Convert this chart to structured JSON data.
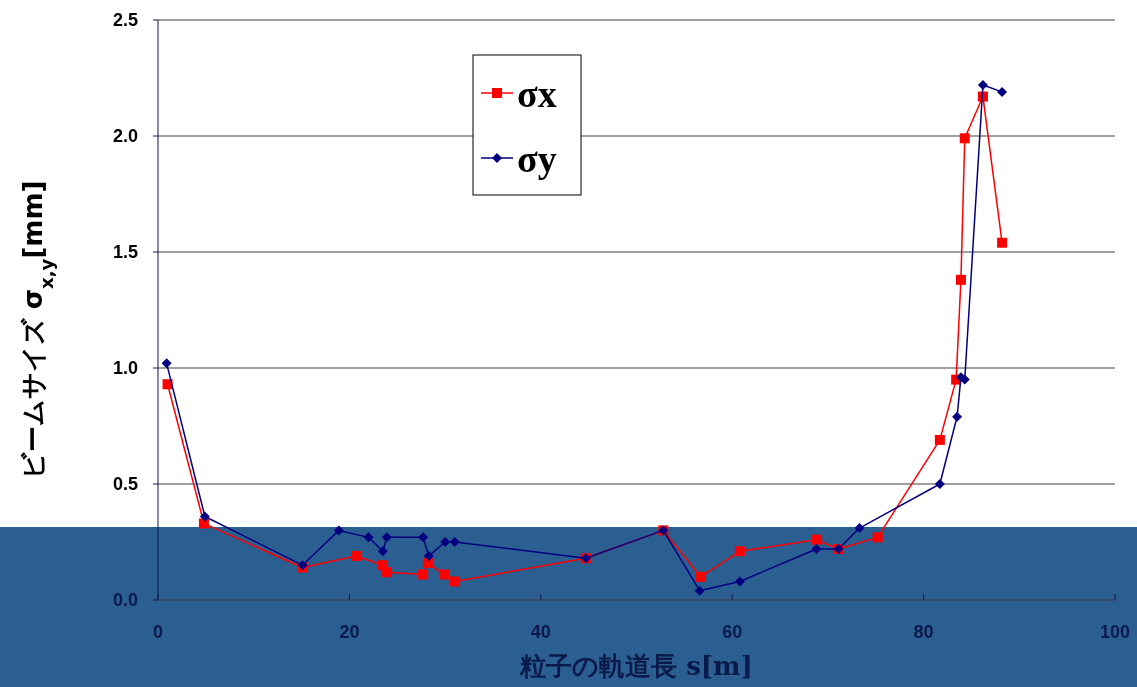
{
  "chart_data": {
    "type": "line",
    "xlabel": "粒子の軌道長 s[m]",
    "ylabel": "ビームサイズ σ$_{x,y}$[mm]",
    "xlim": [
      0,
      100
    ],
    "xticks": [
      0,
      20,
      40,
      60,
      80,
      100
    ],
    "ylim": [
      0,
      2.5
    ],
    "yticks": [
      {
        "value": 0,
        "label": "0.0"
      },
      0.5,
      {
        "value": 1,
        "label": "1.0"
      },
      1.5,
      {
        "value": 2,
        "label": "2.0"
      },
      2.5
    ],
    "grid": "y",
    "legend": "top",
    "line_style": "solid",
    "series": [
      {
        "name": "σx",
        "color": "#ff0000",
        "marker": "square",
        "x": [
          1.0,
          4.8,
          15.1,
          20.7,
          23.5,
          23.9,
          27.7,
          28.2,
          29.9,
          31.0,
          44.7,
          52.8,
          56.7,
          60.8,
          68.8,
          71.1,
          75.2,
          81.7,
          83.4,
          83.9,
          84.3,
          86.2,
          88.2
        ],
        "values": [
          0.93,
          0.33,
          0.14,
          0.19,
          0.15,
          0.12,
          0.11,
          0.16,
          0.11,
          0.08,
          0.18,
          0.3,
          0.1,
          0.21,
          0.26,
          0.22,
          0.27,
          0.69,
          0.95,
          1.38,
          1.99,
          2.17,
          1.54
        ]
      },
      {
        "name": "σy",
        "color": "#000080",
        "marker": "diamond",
        "x": [
          0.9,
          4.9,
          15.1,
          18.9,
          22.0,
          23.5,
          23.9,
          27.7,
          28.3,
          30.0,
          31.0,
          44.7,
          52.8,
          56.6,
          60.8,
          68.8,
          71.1,
          73.3,
          81.7,
          83.5,
          83.9,
          84.3,
          86.2,
          88.2
        ],
        "values": [
          1.02,
          0.36,
          0.15,
          0.3,
          0.27,
          0.21,
          0.27,
          0.27,
          0.19,
          0.25,
          0.25,
          0.18,
          0.3,
          0.04,
          0.08,
          0.22,
          0.22,
          0.31,
          0.5,
          0.79,
          0.96,
          0.95,
          2.22,
          2.19
        ]
      }
    ]
  }
}
